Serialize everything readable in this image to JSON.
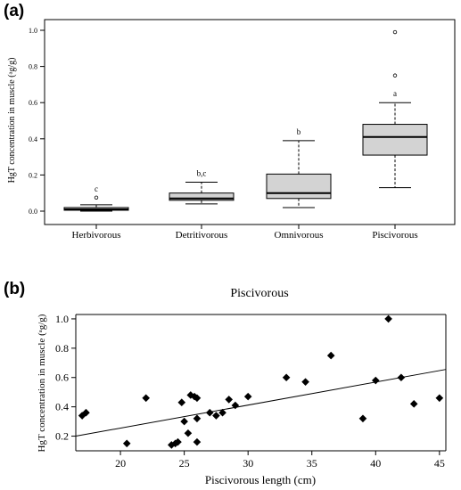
{
  "panels": {
    "a_label": "(a)",
    "b_label": "(b)"
  },
  "chart_data": [
    {
      "type": "box",
      "panel": "(a)",
      "title": "",
      "xlabel": "",
      "ylabel": "HgT concentration in muscle (ᵃg/g)",
      "ylim": [
        0,
        1.0
      ],
      "yticks": [
        "0.0",
        "0.2",
        "0.4",
        "0.6",
        "0.8",
        "1.0"
      ],
      "grid": false,
      "categories": [
        "Herbivorous",
        "Detritivorous",
        "Omnivorous",
        "Piscivorous"
      ],
      "boxes": [
        {
          "whisker_low": 0.0,
          "q1": 0.005,
          "median": 0.01,
          "q3": 0.02,
          "whisker_high": 0.035,
          "outliers": [
            0.075
          ],
          "letter": "c"
        },
        {
          "whisker_low": 0.04,
          "q1": 0.06,
          "median": 0.07,
          "q3": 0.1,
          "whisker_high": 0.16,
          "outliers": [],
          "letter": "b,c"
        },
        {
          "whisker_low": 0.02,
          "q1": 0.07,
          "median": 0.1,
          "q3": 0.205,
          "whisker_high": 0.39,
          "outliers": [],
          "letter": "b"
        },
        {
          "whisker_low": 0.13,
          "q1": 0.31,
          "median": 0.41,
          "q3": 0.48,
          "whisker_high": 0.6,
          "outliers": [
            0.75,
            0.99
          ],
          "letter": "a"
        }
      ]
    },
    {
      "type": "scatter",
      "panel": "(b)",
      "title": "Piscivorous",
      "xlabel": "Piscivorous length (cm)",
      "ylabel": "HgT concentration in muscle (ᵃg/g)",
      "xlim": [
        16.5,
        45.5
      ],
      "ylim": [
        0.1,
        1.03
      ],
      "xticks": [
        "20",
        "25",
        "30",
        "35",
        "40",
        "45"
      ],
      "yticks": [
        "0.2",
        "0.4",
        "0.6",
        "0.8",
        "1.0"
      ],
      "grid": false,
      "x": [
        17.0,
        17.3,
        20.5,
        22.0,
        24.0,
        24.3,
        24.5,
        24.8,
        25.0,
        25.3,
        25.5,
        25.8,
        26.0,
        26.0,
        26.0,
        27.0,
        27.5,
        28.0,
        28.5,
        29.0,
        30.0,
        33.0,
        34.5,
        36.5,
        39.0,
        40.0,
        41.0,
        42.0,
        43.0,
        45.0
      ],
      "y": [
        0.34,
        0.36,
        0.15,
        0.46,
        0.14,
        0.15,
        0.16,
        0.43,
        0.3,
        0.22,
        0.48,
        0.47,
        0.46,
        0.32,
        0.16,
        0.36,
        0.34,
        0.36,
        0.45,
        0.41,
        0.47,
        0.6,
        0.57,
        0.75,
        0.32,
        0.58,
        1.0,
        0.6,
        0.42,
        0.46
      ],
      "trendline": {
        "x": [
          16.5,
          45.5
        ],
        "y": [
          0.2,
          0.655
        ]
      }
    }
  ]
}
